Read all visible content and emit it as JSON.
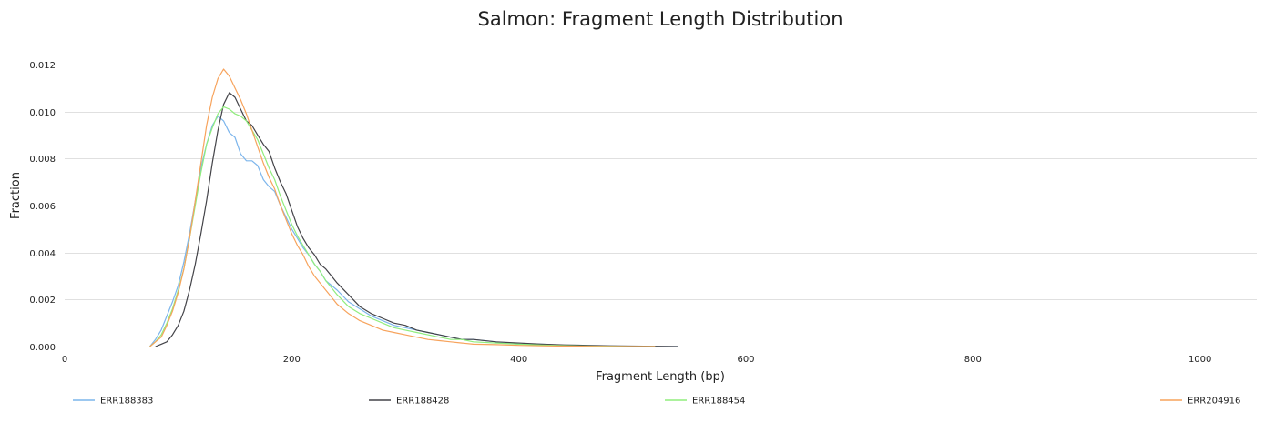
{
  "chart_data": {
    "type": "line",
    "title": "Salmon: Fragment Length Distribution",
    "xlabel": "Fragment Length (bp)",
    "ylabel": "Fraction",
    "xlim": [
      0,
      1050
    ],
    "ylim": [
      0,
      0.013
    ],
    "xticks": [
      0,
      200,
      400,
      600,
      800,
      1000
    ],
    "xtick_labels": [
      "0",
      "200",
      "400",
      "600",
      "800",
      "1000"
    ],
    "yticks": [
      0,
      0.002,
      0.004,
      0.006,
      0.008,
      0.01,
      0.012
    ],
    "ytick_labels": [
      "0.000",
      "0.002",
      "0.004",
      "0.006",
      "0.008",
      "0.010",
      "0.012"
    ],
    "grid": "horizontal",
    "legend_position": "bottom",
    "series": [
      {
        "name": "ERR188383",
        "color": "#7cb5ec",
        "x": [
          75,
          80,
          85,
          90,
          95,
          100,
          105,
          110,
          115,
          120,
          125,
          130,
          135,
          140,
          145,
          150,
          155,
          160,
          165,
          170,
          175,
          180,
          185,
          190,
          195,
          200,
          205,
          210,
          215,
          220,
          225,
          230,
          235,
          240,
          250,
          260,
          270,
          280,
          290,
          300,
          310,
          320,
          330,
          340,
          350,
          360,
          380,
          400,
          420,
          440,
          460,
          480,
          500,
          520,
          540
        ],
        "y": [
          0.0,
          0.0003,
          0.0007,
          0.0013,
          0.0019,
          0.0026,
          0.0036,
          0.0048,
          0.0062,
          0.0076,
          0.0086,
          0.0094,
          0.0098,
          0.0096,
          0.0091,
          0.0089,
          0.0082,
          0.0079,
          0.0079,
          0.0077,
          0.0071,
          0.0068,
          0.0066,
          0.006,
          0.0055,
          0.005,
          0.0046,
          0.0042,
          0.0039,
          0.0035,
          0.0032,
          0.0028,
          0.0026,
          0.0024,
          0.0019,
          0.0016,
          0.0013,
          0.0011,
          0.0009,
          0.0008,
          0.0007,
          0.0006,
          0.0005,
          0.0004,
          0.0003,
          0.0003,
          0.0002,
          0.0001,
          0.0001,
          5e-05,
          3e-05,
          2e-05,
          1e-05,
          0.0,
          0.0
        ]
      },
      {
        "name": "ERR188428",
        "color": "#434348",
        "x": [
          80,
          85,
          90,
          95,
          100,
          105,
          110,
          115,
          120,
          125,
          130,
          135,
          140,
          145,
          150,
          155,
          160,
          165,
          170,
          175,
          180,
          185,
          190,
          195,
          200,
          205,
          210,
          215,
          220,
          225,
          230,
          235,
          240,
          250,
          260,
          270,
          280,
          290,
          300,
          310,
          320,
          330,
          340,
          350,
          360,
          380,
          400,
          420,
          440,
          460,
          480,
          500,
          520,
          540
        ],
        "y": [
          0.0,
          0.0001,
          0.0002,
          0.0005,
          0.0009,
          0.0015,
          0.0024,
          0.0035,
          0.0048,
          0.0062,
          0.0078,
          0.0092,
          0.0103,
          0.0108,
          0.0106,
          0.0101,
          0.0096,
          0.0094,
          0.009,
          0.0086,
          0.0083,
          0.0076,
          0.007,
          0.0065,
          0.0058,
          0.0051,
          0.0046,
          0.0042,
          0.0039,
          0.0035,
          0.0033,
          0.003,
          0.0027,
          0.0022,
          0.0017,
          0.0014,
          0.0012,
          0.001,
          0.0009,
          0.0007,
          0.0006,
          0.0005,
          0.0004,
          0.0003,
          0.0003,
          0.0002,
          0.00015,
          0.0001,
          7e-05,
          5e-05,
          3e-05,
          2e-05,
          1e-05,
          0.0
        ]
      },
      {
        "name": "ERR188454",
        "color": "#90ed7d",
        "x": [
          75,
          80,
          85,
          90,
          95,
          100,
          105,
          110,
          115,
          120,
          125,
          130,
          135,
          140,
          145,
          150,
          155,
          160,
          165,
          170,
          175,
          180,
          185,
          190,
          195,
          200,
          205,
          210,
          215,
          220,
          225,
          230,
          235,
          240,
          250,
          260,
          270,
          280,
          290,
          300,
          310,
          320,
          330,
          340,
          350,
          360,
          380,
          400,
          420,
          440,
          460,
          480,
          500,
          520
        ],
        "y": [
          0.0,
          0.0002,
          0.0005,
          0.001,
          0.0016,
          0.0024,
          0.0033,
          0.0046,
          0.006,
          0.0074,
          0.0086,
          0.0093,
          0.0099,
          0.0102,
          0.0101,
          0.0099,
          0.0098,
          0.0096,
          0.0092,
          0.0088,
          0.0082,
          0.0076,
          0.0071,
          0.0064,
          0.0058,
          0.0052,
          0.0047,
          0.0043,
          0.0039,
          0.0035,
          0.0032,
          0.0028,
          0.0025,
          0.0022,
          0.0017,
          0.0014,
          0.0012,
          0.001,
          0.0008,
          0.0007,
          0.0006,
          0.0005,
          0.0004,
          0.0003,
          0.0003,
          0.0002,
          0.00015,
          0.0001,
          6e-05,
          4e-05,
          2e-05,
          1e-05,
          0.0,
          0.0
        ]
      },
      {
        "name": "ERR204916",
        "color": "#f7a35c",
        "x": [
          75,
          80,
          85,
          90,
          95,
          100,
          105,
          110,
          115,
          120,
          125,
          130,
          135,
          140,
          145,
          150,
          155,
          160,
          165,
          170,
          175,
          180,
          185,
          190,
          195,
          200,
          205,
          210,
          215,
          220,
          225,
          230,
          235,
          240,
          250,
          260,
          270,
          280,
          290,
          300,
          310,
          320,
          330,
          340,
          350,
          360,
          380,
          400,
          420,
          440,
          460,
          480,
          500,
          520
        ],
        "y": [
          0.0,
          0.0002,
          0.0004,
          0.0009,
          0.0015,
          0.0023,
          0.0033,
          0.0046,
          0.0062,
          0.0078,
          0.0094,
          0.0106,
          0.0114,
          0.0118,
          0.0115,
          0.011,
          0.0105,
          0.0099,
          0.0092,
          0.0085,
          0.0078,
          0.0072,
          0.0067,
          0.006,
          0.0054,
          0.0048,
          0.0043,
          0.0039,
          0.0034,
          0.003,
          0.0027,
          0.0024,
          0.0021,
          0.0018,
          0.0014,
          0.0011,
          0.0009,
          0.0007,
          0.0006,
          0.0005,
          0.0004,
          0.0003,
          0.00025,
          0.0002,
          0.00015,
          0.0001,
          8e-05,
          5e-05,
          3e-05,
          2e-05,
          1e-05,
          0.0,
          0.0,
          0.0
        ]
      }
    ]
  }
}
